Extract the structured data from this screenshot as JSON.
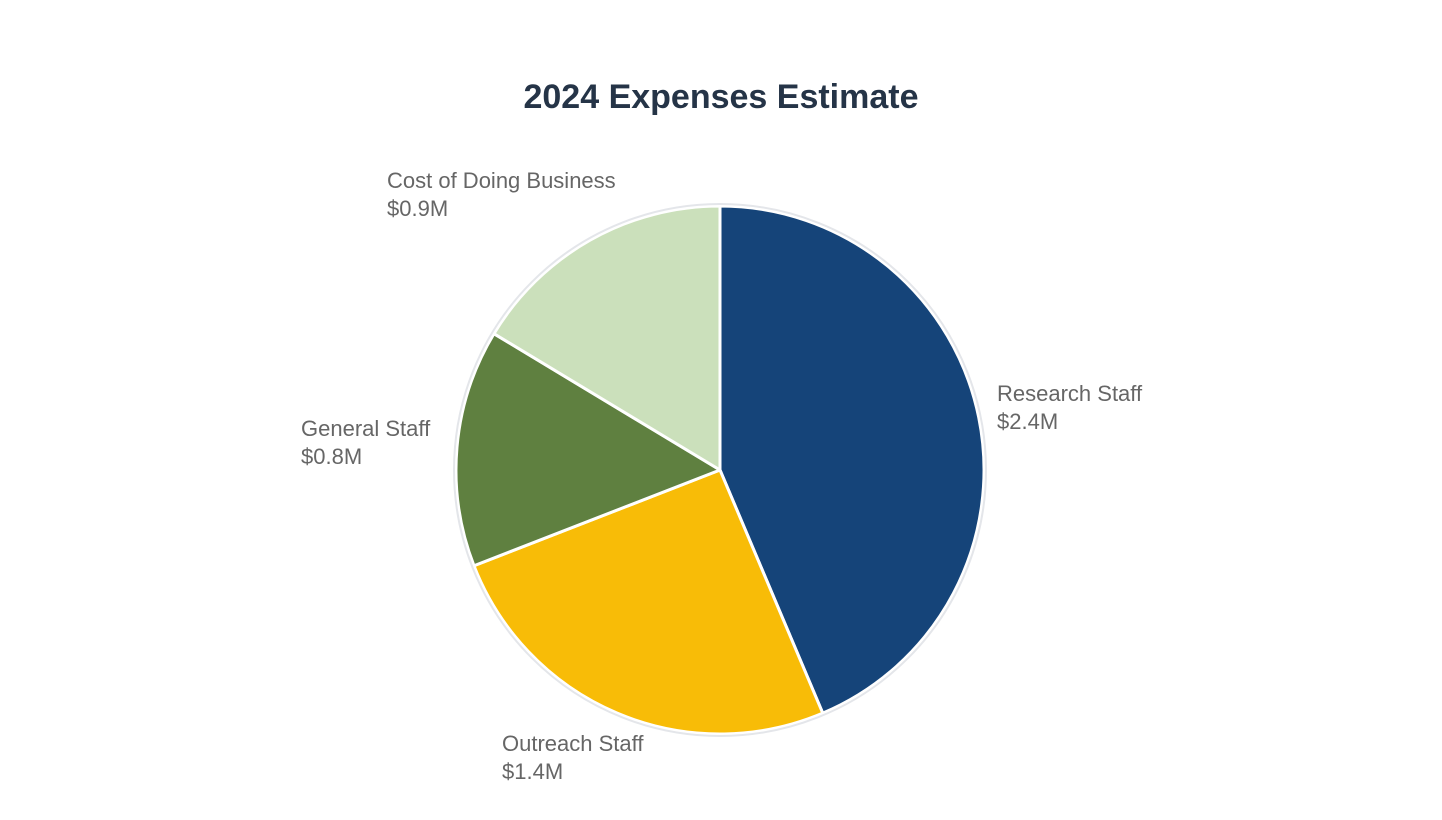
{
  "chart_data": {
    "type": "pie",
    "title": "2024 Expenses Estimate",
    "slices": [
      {
        "label": "Research Staff",
        "value_label": "$2.4M",
        "value": 2.4,
        "color": "#154479"
      },
      {
        "label": "Outreach Staff",
        "value_label": "$1.4M",
        "value": 1.4,
        "color": "#f8bc07"
      },
      {
        "label": "General Staff",
        "value_label": "$0.8M",
        "value": 0.8,
        "color": "#5f8040"
      },
      {
        "label": "Cost of Doing Business",
        "value_label": "$0.9M",
        "value": 0.9,
        "color": "#cbe0bb"
      }
    ],
    "start_angle": "12 o'clock",
    "direction": "clockwise"
  }
}
